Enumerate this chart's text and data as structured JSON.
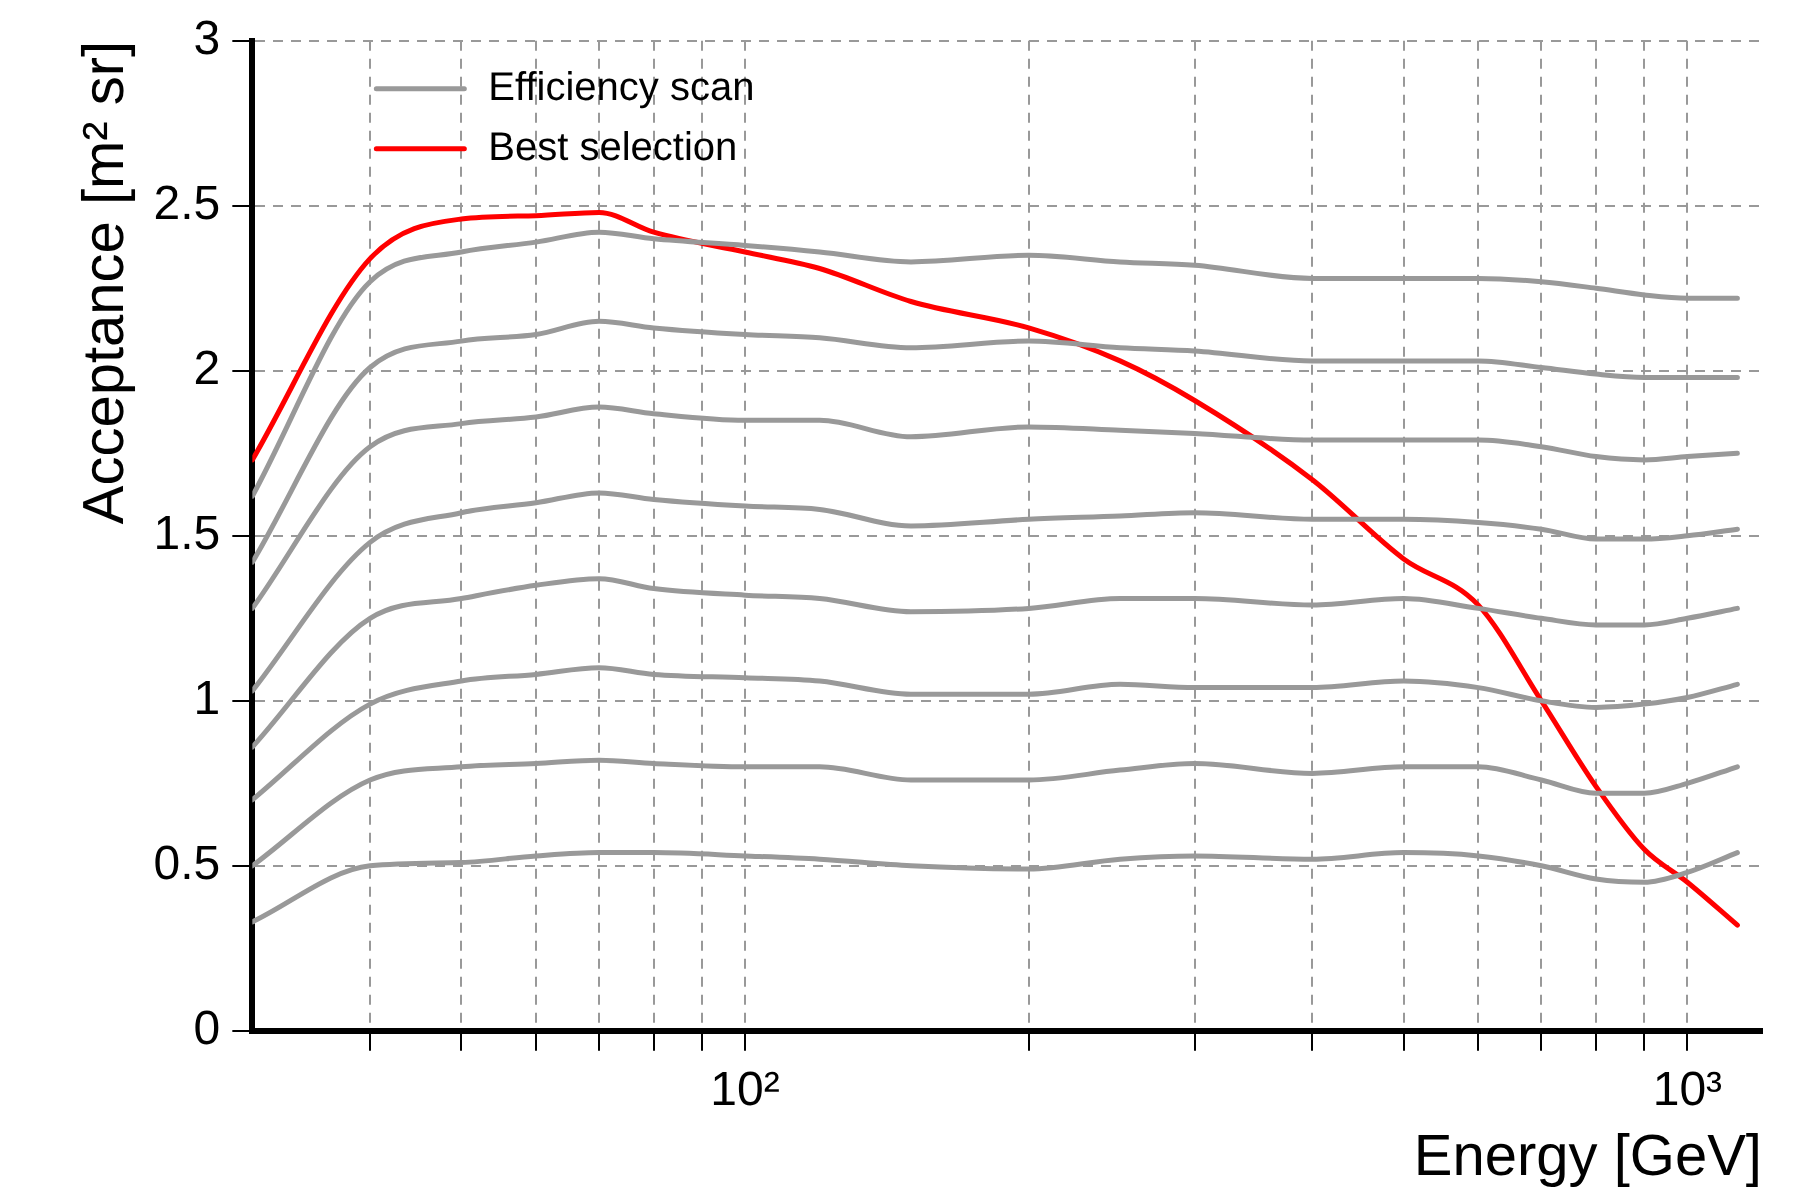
{
  "chart_data": {
    "type": "line",
    "xlabel": "Energy [GeV]",
    "ylabel": "Acceptance [m² sr]",
    "log": "x",
    "grid": true,
    "legend": "top left",
    "marker": "none",
    "line_style": "solid",
    "xlim": [
      30,
      1200
    ],
    "ylim": [
      0,
      3
    ],
    "xticks": [
      {
        "value": 40,
        "label": null
      },
      {
        "value": 50,
        "label": null
      },
      {
        "value": 60,
        "label": null
      },
      {
        "value": 70,
        "label": null
      },
      {
        "value": 80,
        "label": null
      },
      {
        "value": 90,
        "label": null
      },
      {
        "value": 100,
        "label": "10²"
      },
      {
        "value": 200,
        "label": null
      },
      {
        "value": 300,
        "label": null
      },
      {
        "value": 400,
        "label": null
      },
      {
        "value": 500,
        "label": null
      },
      {
        "value": 600,
        "label": null
      },
      {
        "value": 700,
        "label": null
      },
      {
        "value": 800,
        "label": null
      },
      {
        "value": 900,
        "label": null
      },
      {
        "value": 1000,
        "label": "10³"
      }
    ],
    "yticks": [
      0,
      0.5,
      1,
      1.5,
      2,
      2.5,
      3
    ],
    "x": [
      30,
      40,
      50,
      60,
      70,
      80,
      100,
      120,
      150,
      200,
      250,
      300,
      400,
      500,
      600,
      700,
      800,
      900,
      1000,
      1130
    ],
    "series": [
      {
        "name": "Efficiency scan",
        "color": "#999999",
        "values": [
          1.62,
          2.27,
          2.36,
          2.39,
          2.42,
          2.4,
          2.38,
          2.36,
          2.33,
          2.35,
          2.33,
          2.32,
          2.28,
          2.28,
          2.28,
          2.27,
          2.25,
          2.23,
          2.22,
          2.22
        ]
      },
      {
        "color": "#999999",
        "values": [
          1.42,
          2.01,
          2.09,
          2.11,
          2.15,
          2.13,
          2.11,
          2.1,
          2.07,
          2.09,
          2.07,
          2.06,
          2.03,
          2.03,
          2.03,
          2.01,
          1.99,
          1.98,
          1.98,
          1.98
        ]
      },
      {
        "color": "#999999",
        "values": [
          1.28,
          1.77,
          1.84,
          1.86,
          1.89,
          1.87,
          1.85,
          1.85,
          1.8,
          1.83,
          1.82,
          1.81,
          1.79,
          1.79,
          1.79,
          1.77,
          1.74,
          1.73,
          1.74,
          1.75
        ]
      },
      {
        "color": "#999999",
        "values": [
          1.03,
          1.48,
          1.57,
          1.6,
          1.63,
          1.61,
          1.59,
          1.58,
          1.53,
          1.55,
          1.56,
          1.57,
          1.55,
          1.55,
          1.54,
          1.52,
          1.49,
          1.49,
          1.5,
          1.52
        ]
      },
      {
        "color": "#999999",
        "values": [
          0.86,
          1.25,
          1.31,
          1.35,
          1.37,
          1.34,
          1.32,
          1.31,
          1.27,
          1.28,
          1.31,
          1.31,
          1.29,
          1.31,
          1.28,
          1.25,
          1.23,
          1.23,
          1.25,
          1.28
        ]
      },
      {
        "color": "#999999",
        "values": [
          0.7,
          0.99,
          1.06,
          1.08,
          1.1,
          1.08,
          1.07,
          1.06,
          1.02,
          1.02,
          1.05,
          1.04,
          1.04,
          1.06,
          1.04,
          1.0,
          0.98,
          0.99,
          1.01,
          1.05
        ]
      },
      {
        "color": "#999999",
        "values": [
          0.5,
          0.76,
          0.8,
          0.81,
          0.82,
          0.81,
          0.8,
          0.8,
          0.76,
          0.76,
          0.79,
          0.81,
          0.78,
          0.8,
          0.8,
          0.76,
          0.72,
          0.72,
          0.75,
          0.8
        ]
      },
      {
        "color": "#999999",
        "values": [
          0.33,
          0.5,
          0.51,
          0.53,
          0.54,
          0.54,
          0.53,
          0.52,
          0.5,
          0.49,
          0.52,
          0.53,
          0.52,
          0.54,
          0.53,
          0.5,
          0.46,
          0.45,
          0.48,
          0.54
        ]
      },
      {
        "name": "Best selection",
        "color": "#ff0000",
        "values": [
          1.73,
          2.34,
          2.46,
          2.47,
          2.48,
          2.42,
          2.36,
          2.31,
          2.21,
          2.13,
          2.03,
          1.91,
          1.67,
          1.43,
          1.29,
          1.0,
          0.74,
          0.55,
          0.45,
          0.32
        ]
      }
    ]
  }
}
